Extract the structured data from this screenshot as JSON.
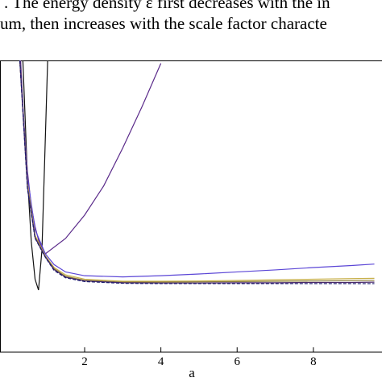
{
  "text": {
    "lines": [
      ". The energy density ε first decreases with the in",
      "um, then increases with the scale factor characte"
    ]
  },
  "chart_data": {
    "type": "line",
    "xlabel": "a",
    "xlim": [
      -0.22,
      9.8
    ],
    "ylim": [
      0,
      10
    ],
    "xticks": [
      2,
      4,
      6,
      8
    ],
    "series": [
      {
        "color": "#111111",
        "x": [
          0.38,
          0.5,
          0.6,
          0.7,
          0.79,
          0.88,
          0.95,
          1.03
        ],
        "values": [
          10,
          6,
          3.8,
          2.5,
          2.13,
          3.5,
          6.5,
          10
        ]
      },
      {
        "color": "#5a2a8a",
        "x": [
          0.32,
          0.4,
          0.5,
          0.6,
          0.7,
          0.8,
          0.97,
          1.5,
          2,
          2.5,
          3,
          3.5,
          4.0
        ],
        "values": [
          10,
          8,
          6.2,
          5,
          4.3,
          3.8,
          3.37,
          3.9,
          4.7,
          5.7,
          7.0,
          8.4,
          9.9
        ]
      },
      {
        "color": "#5b46d6",
        "x": [
          0.3,
          0.5,
          0.7,
          0.97,
          1.2,
          1.5,
          2,
          3,
          4,
          5,
          6,
          7,
          8,
          9,
          9.6
        ],
        "values": [
          10,
          6,
          4.2,
          3.37,
          3.0,
          2.75,
          2.62,
          2.58,
          2.62,
          2.68,
          2.75,
          2.82,
          2.9,
          2.97,
          3.02
        ]
      },
      {
        "color": "#c8b04a",
        "x": [
          0.3,
          0.5,
          0.7,
          0.97,
          1.2,
          1.5,
          2,
          3,
          4,
          5,
          6,
          7,
          8,
          9,
          9.6
        ],
        "values": [
          10,
          5.8,
          4.0,
          3.3,
          2.9,
          2.65,
          2.5,
          2.43,
          2.43,
          2.44,
          2.46,
          2.48,
          2.5,
          2.52,
          2.53
        ]
      },
      {
        "color": "#8b7d3a",
        "x": [
          0.3,
          0.5,
          0.7,
          0.97,
          1.2,
          1.5,
          2,
          3,
          4,
          5,
          6,
          7,
          8,
          9,
          9.6
        ],
        "values": [
          10,
          5.7,
          3.95,
          3.28,
          2.86,
          2.6,
          2.46,
          2.4,
          2.4,
          2.41,
          2.42,
          2.43,
          2.44,
          2.45,
          2.46
        ]
      },
      {
        "color": "#4b2a6b",
        "x": [
          0.3,
          0.5,
          0.7,
          0.97,
          1.2,
          1.5,
          2,
          3,
          4,
          5,
          6,
          7,
          8,
          9,
          9.6
        ],
        "values": [
          10,
          5.65,
          3.92,
          3.26,
          2.83,
          2.57,
          2.44,
          2.38,
          2.37,
          2.37,
          2.38,
          2.38,
          2.39,
          2.39,
          2.4
        ]
      },
      {
        "color": "#1a1a6e",
        "dash": true,
        "x": [
          0.3,
          0.5,
          0.7,
          0.97,
          1.2,
          1.5,
          2,
          3,
          4,
          5,
          6,
          7,
          8,
          9,
          9.6
        ],
        "values": [
          10,
          5.6,
          3.9,
          3.25,
          2.8,
          2.55,
          2.42,
          2.36,
          2.35,
          2.35,
          2.35,
          2.35,
          2.35,
          2.35,
          2.35
        ]
      }
    ]
  }
}
